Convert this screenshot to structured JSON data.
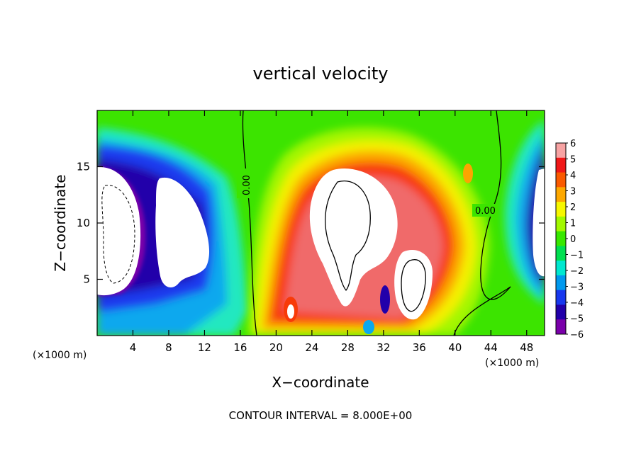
{
  "chart_data": {
    "type": "heatmap",
    "title": "vertical velocity",
    "xlabel": "X−coordinate",
    "ylabel": "Z−coordinate",
    "x_unit": "(×1000 m)",
    "y_unit": "(×1000 m)",
    "xlim": [
      0,
      50
    ],
    "ylim": [
      0,
      20
    ],
    "x_ticks": [
      4,
      8,
      12,
      16,
      20,
      24,
      28,
      32,
      36,
      40,
      44,
      48
    ],
    "x_tick_labels": [
      "4",
      "8",
      "12",
      "16",
      "20",
      "24",
      "28",
      "32",
      "36",
      "40",
      "44",
      "48"
    ],
    "y_ticks": [
      5,
      10,
      15
    ],
    "y_tick_labels": [
      "5",
      "10",
      "15"
    ],
    "colorbar": {
      "levels": [
        6,
        5,
        4,
        3,
        2,
        1,
        0,
        -1,
        -2,
        -3,
        -4,
        -5,
        -6
      ],
      "labels": [
        "6",
        "5",
        "4",
        "3",
        "2",
        "1",
        "0",
        "−1",
        "−2",
        "−3",
        "−4",
        "−5",
        "−6"
      ],
      "colors": [
        "#f7a3a3",
        "#f01818",
        "#fa5a00",
        "#fda800",
        "#f7f700",
        "#a2f900",
        "#38e800",
        "#00e050",
        "#00e8d0",
        "#0099ee",
        "#1838ee",
        "#2200aa",
        "#7a00aa"
      ],
      "range": [
        -6,
        6
      ]
    },
    "contour_labels": [
      "0.00",
      "0.00"
    ],
    "grid": false,
    "footnote": "CONTOUR INTERVAL = 8.000E+00"
  }
}
